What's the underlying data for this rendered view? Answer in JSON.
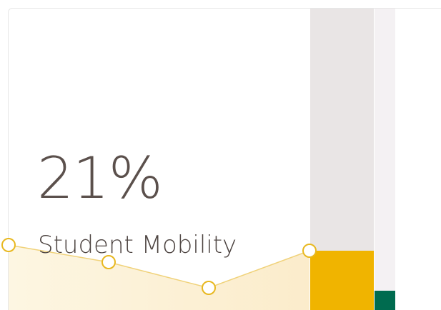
{
  "card": {
    "value": "21%",
    "label": "Student Mobility"
  }
}
